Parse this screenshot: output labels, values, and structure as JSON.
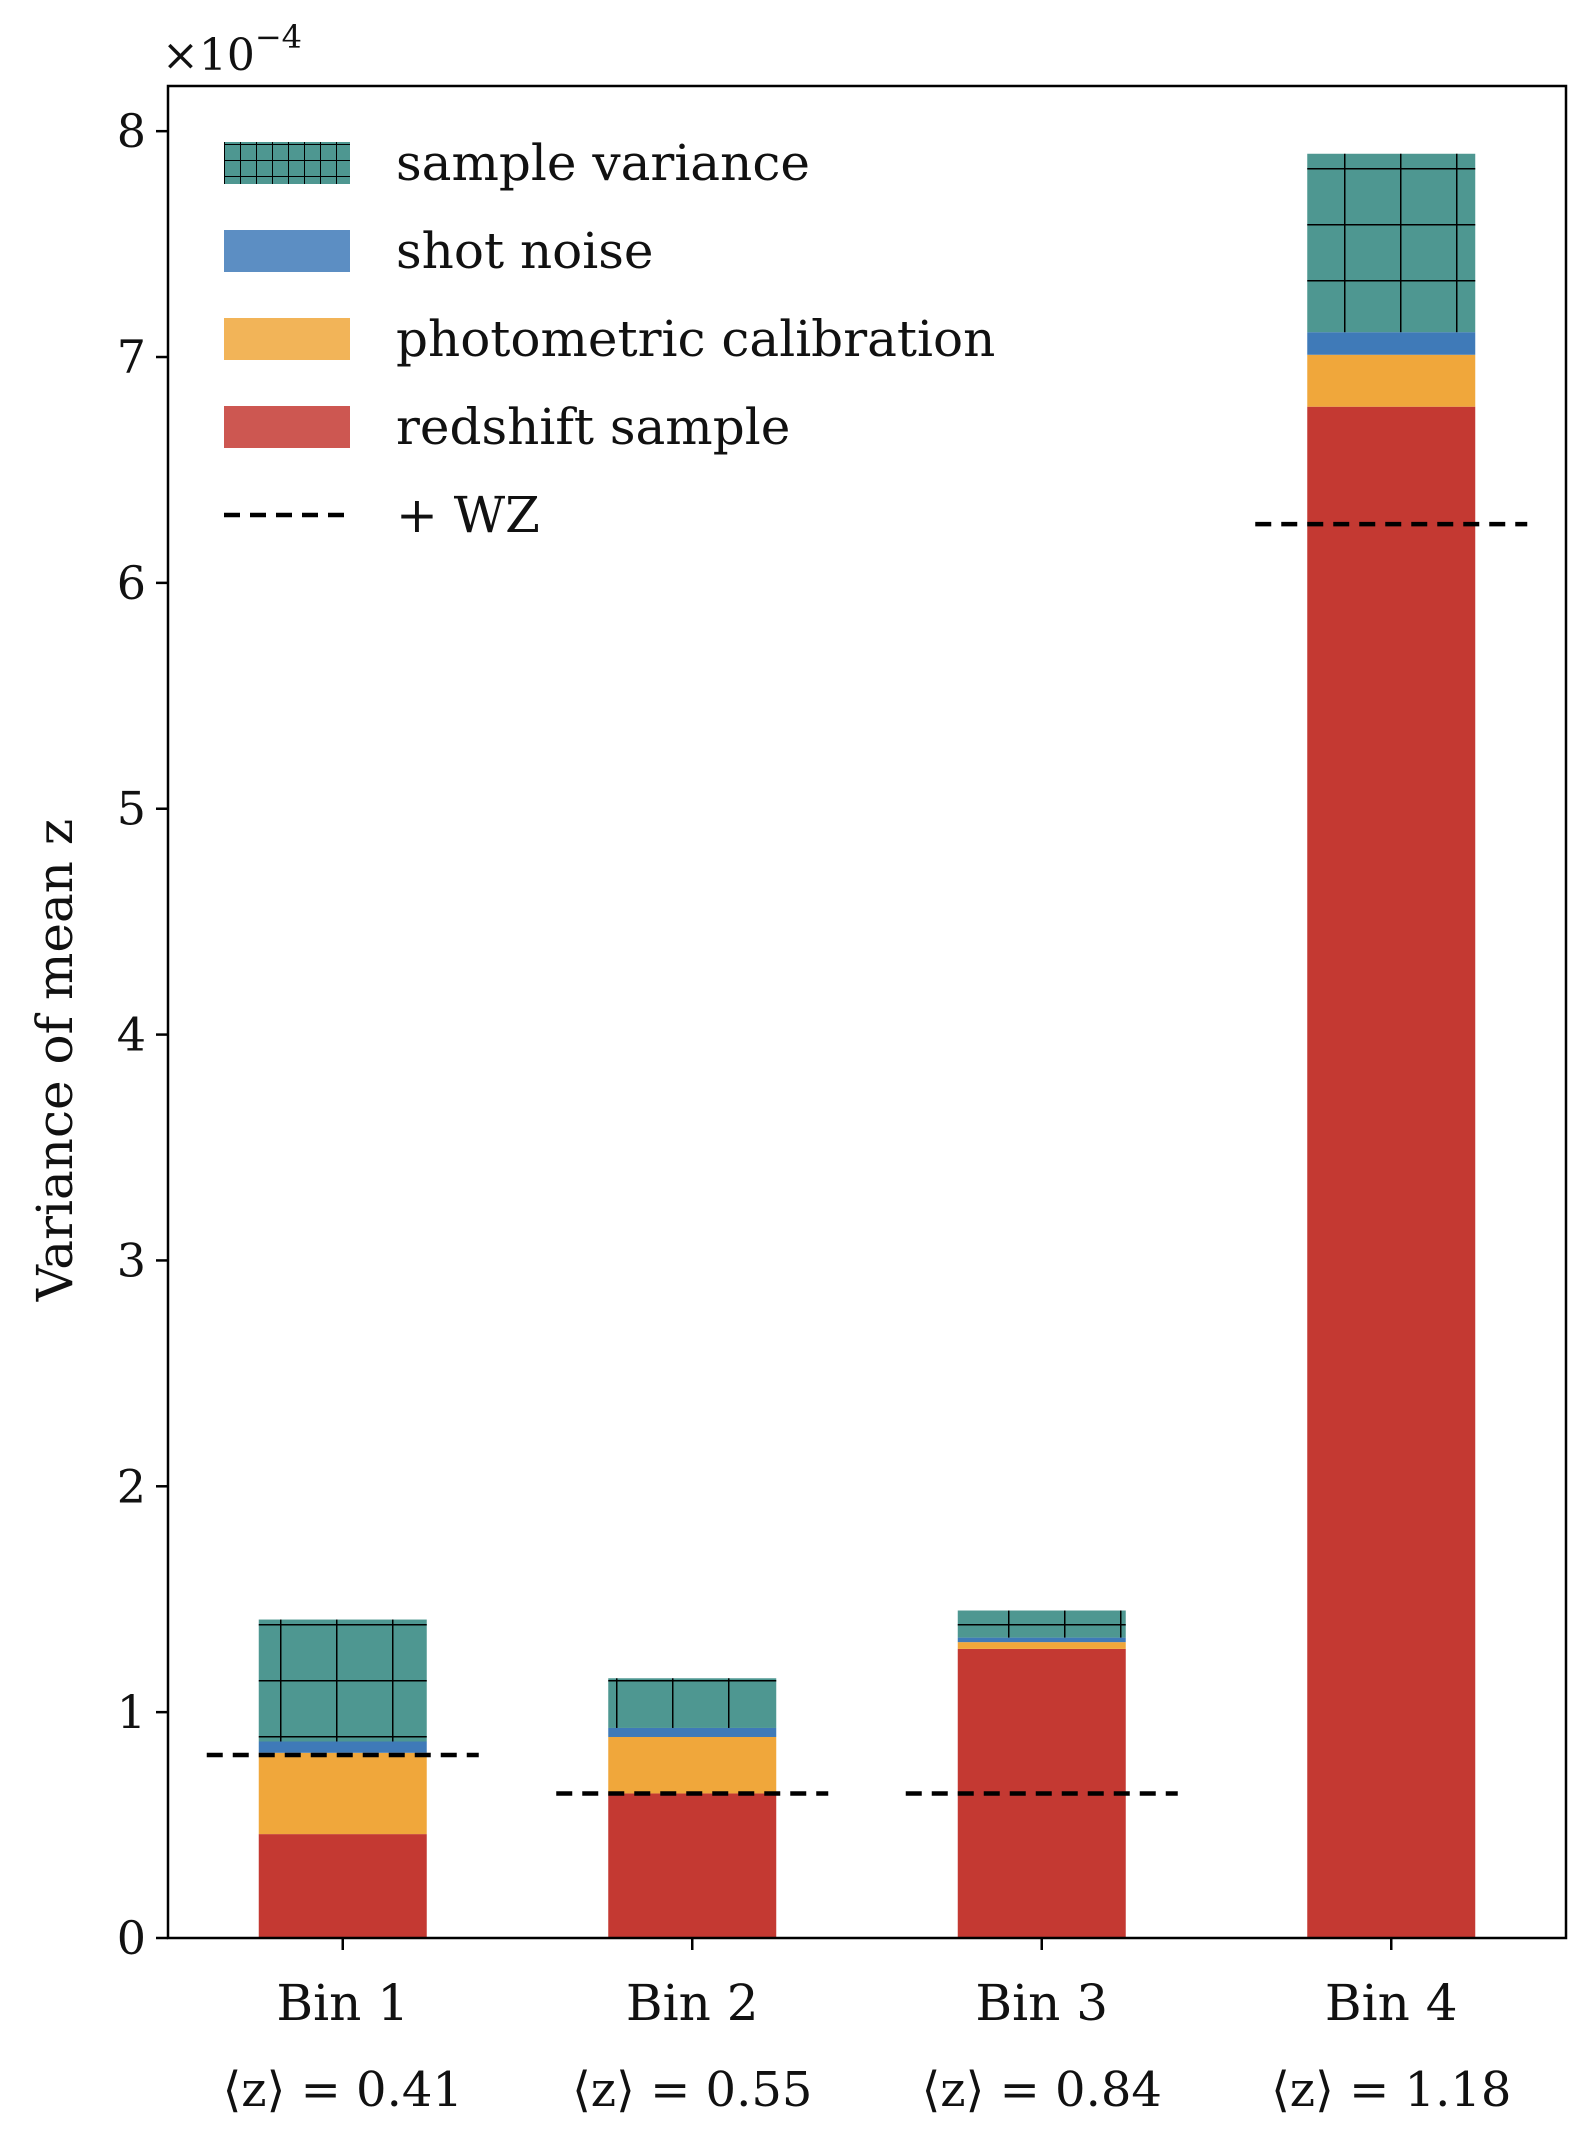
{
  "chart_data": {
    "type": "bar",
    "stacked": true,
    "ylabel": "Variance of mean z",
    "y_offset_label": {
      "base": "×10",
      "exponent": "−4"
    },
    "ylim": [
      0,
      8.2
    ],
    "yticks": [
      0,
      1,
      2,
      3,
      4,
      5,
      6,
      7,
      8
    ],
    "categories": [
      "Bin 1",
      "Bin 2",
      "Bin 3",
      "Bin 4"
    ],
    "category_means": [
      "⟨z⟩ = 0.41",
      "⟨z⟩ = 0.55",
      "⟨z⟩ = 0.84",
      "⟨z⟩ = 1.18"
    ],
    "series": [
      {
        "name": "redshift sample",
        "color": "#c43932",
        "values": [
          0.46,
          0.64,
          1.28,
          6.78
        ]
      },
      {
        "name": "photometric calibration",
        "color": "#f0a73b",
        "values": [
          0.36,
          0.25,
          0.03,
          0.23
        ]
      },
      {
        "name": "shot noise",
        "color": "#3f7ab8",
        "values": [
          0.05,
          0.04,
          0.02,
          0.1
        ]
      },
      {
        "name": "sample variance",
        "color": "#4e9791",
        "hatch": "grid",
        "values": [
          0.54,
          0.22,
          0.12,
          0.79
        ]
      }
    ],
    "reference_lines": {
      "name": "+ WZ",
      "style": "dashed",
      "color": "#000000",
      "values": [
        0.81,
        0.64,
        0.64,
        6.26
      ]
    },
    "legend": {
      "placement": "top-left",
      "entries": [
        "sample variance",
        "shot noise",
        "photometric calibration",
        "redshift sample",
        "+ WZ"
      ]
    }
  }
}
